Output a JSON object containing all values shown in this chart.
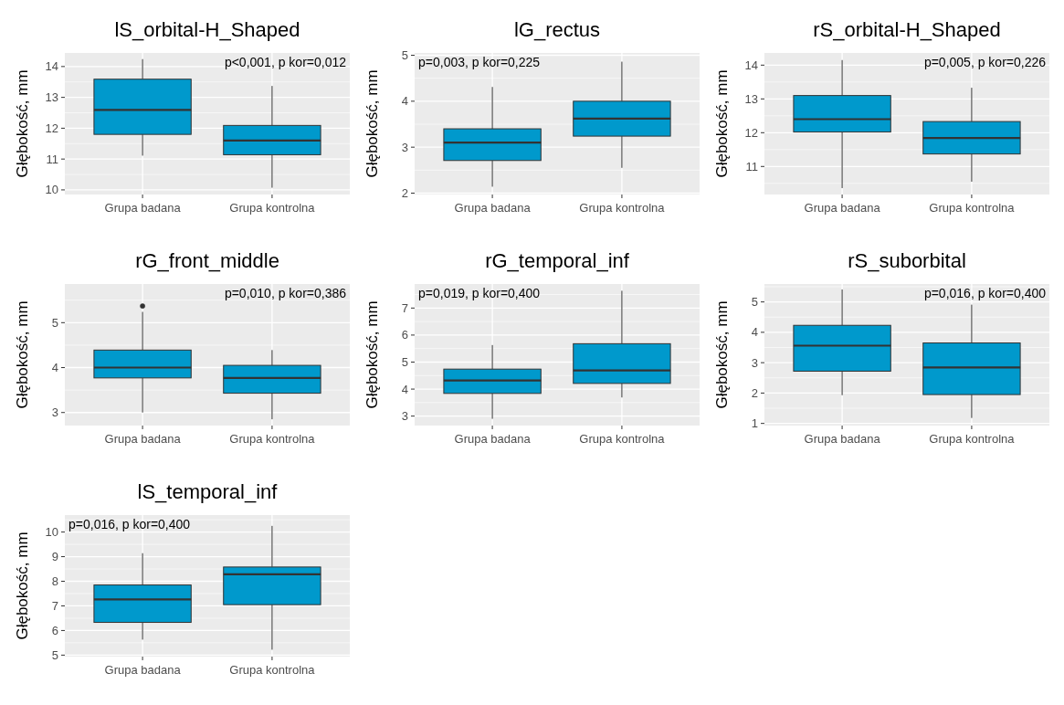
{
  "chart_data": [
    {
      "type": "box",
      "title": "lS_orbital-H_Shaped",
      "ylabel": "Głębokość, mm",
      "categories": [
        "Grupa badana",
        "Grupa kontrolna"
      ],
      "ylim": [
        9.85,
        14.44
      ],
      "yticks": [
        10,
        11,
        12,
        13,
        14
      ],
      "grid": true,
      "annotations": [
        "p<0,001, p kor=0,012"
      ],
      "series": [
        {
          "color": "#0099cc",
          "boxes": [
            {
              "low": 11.11,
              "q1": 11.8,
              "median": 12.59,
              "q3": 13.59,
              "high": 14.24
            },
            {
              "low": 10.07,
              "q1": 11.14,
              "median": 11.6,
              "q3": 12.09,
              "high": 13.37
            }
          ]
        }
      ]
    },
    {
      "type": "box",
      "title": "lG_rectus",
      "ylabel": "Głębokość, mm",
      "categories": [
        "Grupa badana",
        "Grupa kontrolna"
      ],
      "ylim": [
        1.97,
        5.05
      ],
      "yticks": [
        2,
        3,
        4,
        5
      ],
      "grid": true,
      "annotations": [
        "p=0,003, p kor=0,225"
      ],
      "series": [
        {
          "color": "#0099cc",
          "boxes": [
            {
              "low": 2.14,
              "q1": 2.71,
              "median": 3.1,
              "q3": 3.4,
              "high": 4.31
            },
            {
              "low": 2.55,
              "q1": 3.24,
              "median": 3.62,
              "q3": 4.0,
              "high": 4.86
            }
          ]
        }
      ]
    },
    {
      "type": "box",
      "title": "rS_orbital-H_Shaped",
      "ylabel": "Głębokość, mm",
      "categories": [
        "Grupa badana",
        "Grupa kontrolna"
      ],
      "ylim": [
        10.17,
        14.36
      ],
      "yticks": [
        11,
        12,
        13,
        14
      ],
      "grid": true,
      "annotations": [
        "p=0,005, p kor=0,226"
      ],
      "series": [
        {
          "color": "#0099cc",
          "boxes": [
            {
              "low": 10.36,
              "q1": 12.02,
              "median": 12.4,
              "q3": 13.1,
              "high": 14.15
            },
            {
              "low": 10.55,
              "q1": 11.37,
              "median": 11.84,
              "q3": 12.33,
              "high": 13.33
            }
          ]
        }
      ]
    },
    {
      "type": "box",
      "title": "rG_front_middle",
      "ylabel": "Głębokość, mm",
      "categories": [
        "Grupa badana",
        "Grupa kontrolna"
      ],
      "ylim": [
        2.71,
        5.86
      ],
      "yticks": [
        3,
        4,
        5
      ],
      "grid": true,
      "annotations": [
        "p=0,010, p kor=0,386"
      ],
      "series": [
        {
          "color": "#0099cc",
          "boxes": [
            {
              "low": 3.0,
              "q1": 3.77,
              "median": 4.0,
              "q3": 4.39,
              "high": 5.24,
              "outliers": [
                5.37
              ]
            },
            {
              "low": 2.85,
              "q1": 3.43,
              "median": 3.77,
              "q3": 4.05,
              "high": 4.39
            }
          ]
        }
      ]
    },
    {
      "type": "box",
      "title": "rG_temporal_inf",
      "ylabel": "Głębokość, mm",
      "categories": [
        "Grupa badana",
        "Grupa kontrolna"
      ],
      "ylim": [
        2.65,
        7.89
      ],
      "yticks": [
        3,
        4,
        5,
        6,
        7
      ],
      "grid": true,
      "annotations": [
        "p=0,019, p kor=0,400"
      ],
      "series": [
        {
          "color": "#0099cc",
          "boxes": [
            {
              "low": 2.9,
              "q1": 3.84,
              "median": 4.32,
              "q3": 4.74,
              "high": 5.63
            },
            {
              "low": 3.69,
              "q1": 4.21,
              "median": 4.69,
              "q3": 5.68,
              "high": 7.64
            }
          ]
        }
      ]
    },
    {
      "type": "box",
      "title": "rS_suborbital",
      "ylabel": "Głębokość, mm",
      "categories": [
        "Grupa badana",
        "Grupa kontrolna"
      ],
      "ylim": [
        0.93,
        5.59
      ],
      "yticks": [
        1,
        2,
        3,
        4,
        5
      ],
      "grid": true,
      "annotations": [
        "p=0,016, p kor=0,400"
      ],
      "series": [
        {
          "color": "#0099cc",
          "boxes": [
            {
              "low": 1.93,
              "q1": 2.72,
              "median": 3.56,
              "q3": 4.23,
              "high": 5.41
            },
            {
              "low": 1.18,
              "q1": 1.95,
              "median": 2.84,
              "q3": 3.65,
              "high": 4.91
            }
          ]
        }
      ]
    },
    {
      "type": "box",
      "title": "lS_temporal_inf",
      "ylabel": "Głębokość, mm",
      "categories": [
        "Grupa badana",
        "Grupa kontrolna"
      ],
      "ylim": [
        4.94,
        10.69
      ],
      "yticks": [
        5,
        6,
        7,
        8,
        9,
        10
      ],
      "grid": true,
      "annotations": [
        "p=0,016, p kor=0,400"
      ],
      "series": [
        {
          "color": "#0099cc",
          "boxes": [
            {
              "low": 5.63,
              "q1": 6.33,
              "median": 7.26,
              "q3": 7.85,
              "high": 9.14
            },
            {
              "low": 5.22,
              "q1": 7.05,
              "median": 8.28,
              "q3": 8.58,
              "high": 10.25
            }
          ]
        }
      ]
    }
  ]
}
